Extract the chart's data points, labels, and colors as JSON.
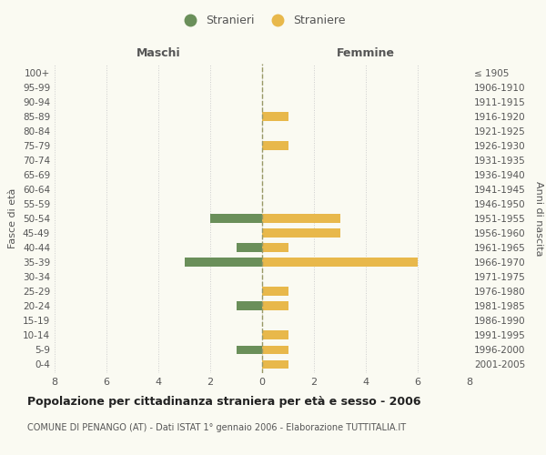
{
  "age_groups": [
    "100+",
    "95-99",
    "90-94",
    "85-89",
    "80-84",
    "75-79",
    "70-74",
    "65-69",
    "60-64",
    "55-59",
    "50-54",
    "45-49",
    "40-44",
    "35-39",
    "30-34",
    "25-29",
    "20-24",
    "15-19",
    "10-14",
    "5-9",
    "0-4"
  ],
  "birth_years": [
    "≤ 1905",
    "1906-1910",
    "1911-1915",
    "1916-1920",
    "1921-1925",
    "1926-1930",
    "1931-1935",
    "1936-1940",
    "1941-1945",
    "1946-1950",
    "1951-1955",
    "1956-1960",
    "1961-1965",
    "1966-1970",
    "1971-1975",
    "1976-1980",
    "1981-1985",
    "1986-1990",
    "1991-1995",
    "1996-2000",
    "2001-2005"
  ],
  "maschi": [
    0,
    0,
    0,
    0,
    0,
    0,
    0,
    0,
    0,
    0,
    2,
    0,
    1,
    3,
    0,
    0,
    1,
    0,
    0,
    1,
    0
  ],
  "femmine": [
    0,
    0,
    0,
    1,
    0,
    1,
    0,
    0,
    0,
    0,
    3,
    3,
    1,
    6,
    0,
    1,
    1,
    0,
    1,
    1,
    1
  ],
  "color_maschi": "#6a8f5a",
  "color_femmine": "#e8b84b",
  "title": "Popolazione per cittadinanza straniera per età e sesso - 2006",
  "subtitle": "COMUNE DI PENANGO (AT) - Dati ISTAT 1° gennaio 2006 - Elaborazione TUTTITALIA.IT",
  "xlabel_left": "Maschi",
  "xlabel_right": "Femmine",
  "ylabel_left": "Fasce di età",
  "ylabel_right": "Anni di nascita",
  "legend_stranieri": "Stranieri",
  "legend_straniere": "Straniere",
  "xlim": 8,
  "background_color": "#fafaf2",
  "grid_color": "#cccccc",
  "text_color": "#555555"
}
